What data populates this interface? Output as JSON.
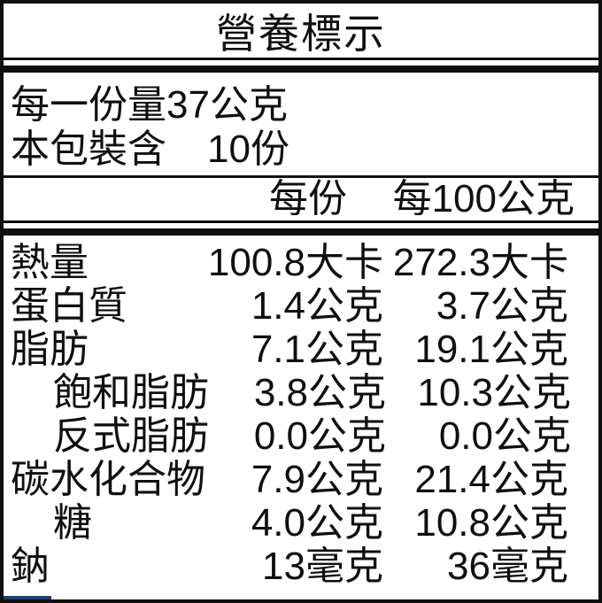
{
  "label": {
    "title": "營養標示",
    "serving_size_line": "每一份量37公克",
    "package_line": {
      "label": "本包裝含",
      "value": "10份"
    },
    "columns": {
      "per_serving": "每份",
      "per_100g": "每100公克"
    },
    "rows": [
      {
        "name": "熱量",
        "indent": false,
        "per_serving": "100.8大卡",
        "per_100g": "272.3大卡"
      },
      {
        "name": "蛋白質",
        "indent": false,
        "per_serving": "1.4公克",
        "per_100g": "3.7公克"
      },
      {
        "name": "脂肪",
        "indent": false,
        "per_serving": "7.1公克",
        "per_100g": "19.1公克"
      },
      {
        "name": "飽和脂肪",
        "indent": true,
        "per_serving": "3.8公克",
        "per_100g": "10.3公克"
      },
      {
        "name": "反式脂肪",
        "indent": true,
        "per_serving": "0.0公克",
        "per_100g": "0.0公克"
      },
      {
        "name": "碳水化合物",
        "indent": false,
        "per_serving": "7.9公克",
        "per_100g": "21.4公克"
      },
      {
        "name": "糖",
        "indent": true,
        "per_serving": "4.0公克",
        "per_100g": "10.8公克"
      },
      {
        "name": "鈉",
        "indent": false,
        "per_serving": "13毫克",
        "per_100g": "36毫克"
      }
    ],
    "colors": {
      "text": "#0f0f0f",
      "border": "#0f0f0f",
      "background": "#ffffff",
      "artifact_blue": "#1e3f7d"
    }
  }
}
